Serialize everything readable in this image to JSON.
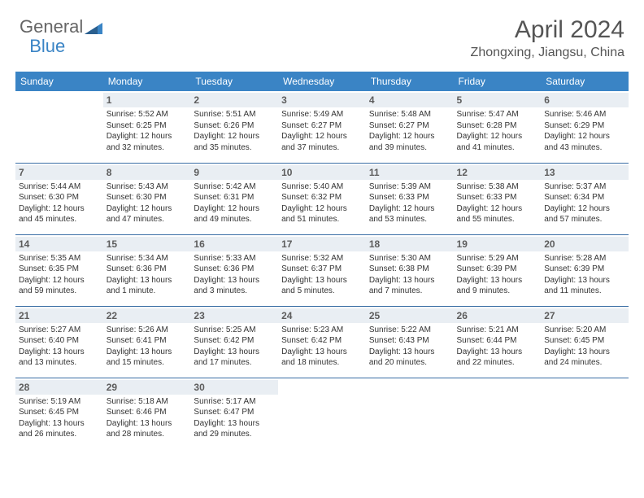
{
  "logo": {
    "part1": "General",
    "part2": "Blue"
  },
  "header": {
    "month": "April 2024",
    "location": "Zhongxing, Jiangsu, China"
  },
  "columns": [
    "Sunday",
    "Monday",
    "Tuesday",
    "Wednesday",
    "Thursday",
    "Friday",
    "Saturday"
  ],
  "colors": {
    "header_bg": "#3a84c5",
    "header_fg": "#ffffff",
    "daynum_bg": "#e9eef3",
    "daynum_fg": "#5c5c5c",
    "row_border": "#3a6ea5",
    "logo_blue": "#3a84c5",
    "logo_gray": "#666666",
    "text": "#333333"
  },
  "weeks": [
    [
      {
        "day": "",
        "sunrise": "",
        "sunset": "",
        "daylight": ""
      },
      {
        "day": "1",
        "sunrise": "5:52 AM",
        "sunset": "6:25 PM",
        "daylight": "12 hours and 32 minutes."
      },
      {
        "day": "2",
        "sunrise": "5:51 AM",
        "sunset": "6:26 PM",
        "daylight": "12 hours and 35 minutes."
      },
      {
        "day": "3",
        "sunrise": "5:49 AM",
        "sunset": "6:27 PM",
        "daylight": "12 hours and 37 minutes."
      },
      {
        "day": "4",
        "sunrise": "5:48 AM",
        "sunset": "6:27 PM",
        "daylight": "12 hours and 39 minutes."
      },
      {
        "day": "5",
        "sunrise": "5:47 AM",
        "sunset": "6:28 PM",
        "daylight": "12 hours and 41 minutes."
      },
      {
        "day": "6",
        "sunrise": "5:46 AM",
        "sunset": "6:29 PM",
        "daylight": "12 hours and 43 minutes."
      }
    ],
    [
      {
        "day": "7",
        "sunrise": "5:44 AM",
        "sunset": "6:30 PM",
        "daylight": "12 hours and 45 minutes."
      },
      {
        "day": "8",
        "sunrise": "5:43 AM",
        "sunset": "6:30 PM",
        "daylight": "12 hours and 47 minutes."
      },
      {
        "day": "9",
        "sunrise": "5:42 AM",
        "sunset": "6:31 PM",
        "daylight": "12 hours and 49 minutes."
      },
      {
        "day": "10",
        "sunrise": "5:40 AM",
        "sunset": "6:32 PM",
        "daylight": "12 hours and 51 minutes."
      },
      {
        "day": "11",
        "sunrise": "5:39 AM",
        "sunset": "6:33 PM",
        "daylight": "12 hours and 53 minutes."
      },
      {
        "day": "12",
        "sunrise": "5:38 AM",
        "sunset": "6:33 PM",
        "daylight": "12 hours and 55 minutes."
      },
      {
        "day": "13",
        "sunrise": "5:37 AM",
        "sunset": "6:34 PM",
        "daylight": "12 hours and 57 minutes."
      }
    ],
    [
      {
        "day": "14",
        "sunrise": "5:35 AM",
        "sunset": "6:35 PM",
        "daylight": "12 hours and 59 minutes."
      },
      {
        "day": "15",
        "sunrise": "5:34 AM",
        "sunset": "6:36 PM",
        "daylight": "13 hours and 1 minute."
      },
      {
        "day": "16",
        "sunrise": "5:33 AM",
        "sunset": "6:36 PM",
        "daylight": "13 hours and 3 minutes."
      },
      {
        "day": "17",
        "sunrise": "5:32 AM",
        "sunset": "6:37 PM",
        "daylight": "13 hours and 5 minutes."
      },
      {
        "day": "18",
        "sunrise": "5:30 AM",
        "sunset": "6:38 PM",
        "daylight": "13 hours and 7 minutes."
      },
      {
        "day": "19",
        "sunrise": "5:29 AM",
        "sunset": "6:39 PM",
        "daylight": "13 hours and 9 minutes."
      },
      {
        "day": "20",
        "sunrise": "5:28 AM",
        "sunset": "6:39 PM",
        "daylight": "13 hours and 11 minutes."
      }
    ],
    [
      {
        "day": "21",
        "sunrise": "5:27 AM",
        "sunset": "6:40 PM",
        "daylight": "13 hours and 13 minutes."
      },
      {
        "day": "22",
        "sunrise": "5:26 AM",
        "sunset": "6:41 PM",
        "daylight": "13 hours and 15 minutes."
      },
      {
        "day": "23",
        "sunrise": "5:25 AM",
        "sunset": "6:42 PM",
        "daylight": "13 hours and 17 minutes."
      },
      {
        "day": "24",
        "sunrise": "5:23 AM",
        "sunset": "6:42 PM",
        "daylight": "13 hours and 18 minutes."
      },
      {
        "day": "25",
        "sunrise": "5:22 AM",
        "sunset": "6:43 PM",
        "daylight": "13 hours and 20 minutes."
      },
      {
        "day": "26",
        "sunrise": "5:21 AM",
        "sunset": "6:44 PM",
        "daylight": "13 hours and 22 minutes."
      },
      {
        "day": "27",
        "sunrise": "5:20 AM",
        "sunset": "6:45 PM",
        "daylight": "13 hours and 24 minutes."
      }
    ],
    [
      {
        "day": "28",
        "sunrise": "5:19 AM",
        "sunset": "6:45 PM",
        "daylight": "13 hours and 26 minutes."
      },
      {
        "day": "29",
        "sunrise": "5:18 AM",
        "sunset": "6:46 PM",
        "daylight": "13 hours and 28 minutes."
      },
      {
        "day": "30",
        "sunrise": "5:17 AM",
        "sunset": "6:47 PM",
        "daylight": "13 hours and 29 minutes."
      },
      {
        "day": "",
        "sunrise": "",
        "sunset": "",
        "daylight": ""
      },
      {
        "day": "",
        "sunrise": "",
        "sunset": "",
        "daylight": ""
      },
      {
        "day": "",
        "sunrise": "",
        "sunset": "",
        "daylight": ""
      },
      {
        "day": "",
        "sunrise": "",
        "sunset": "",
        "daylight": ""
      }
    ]
  ]
}
